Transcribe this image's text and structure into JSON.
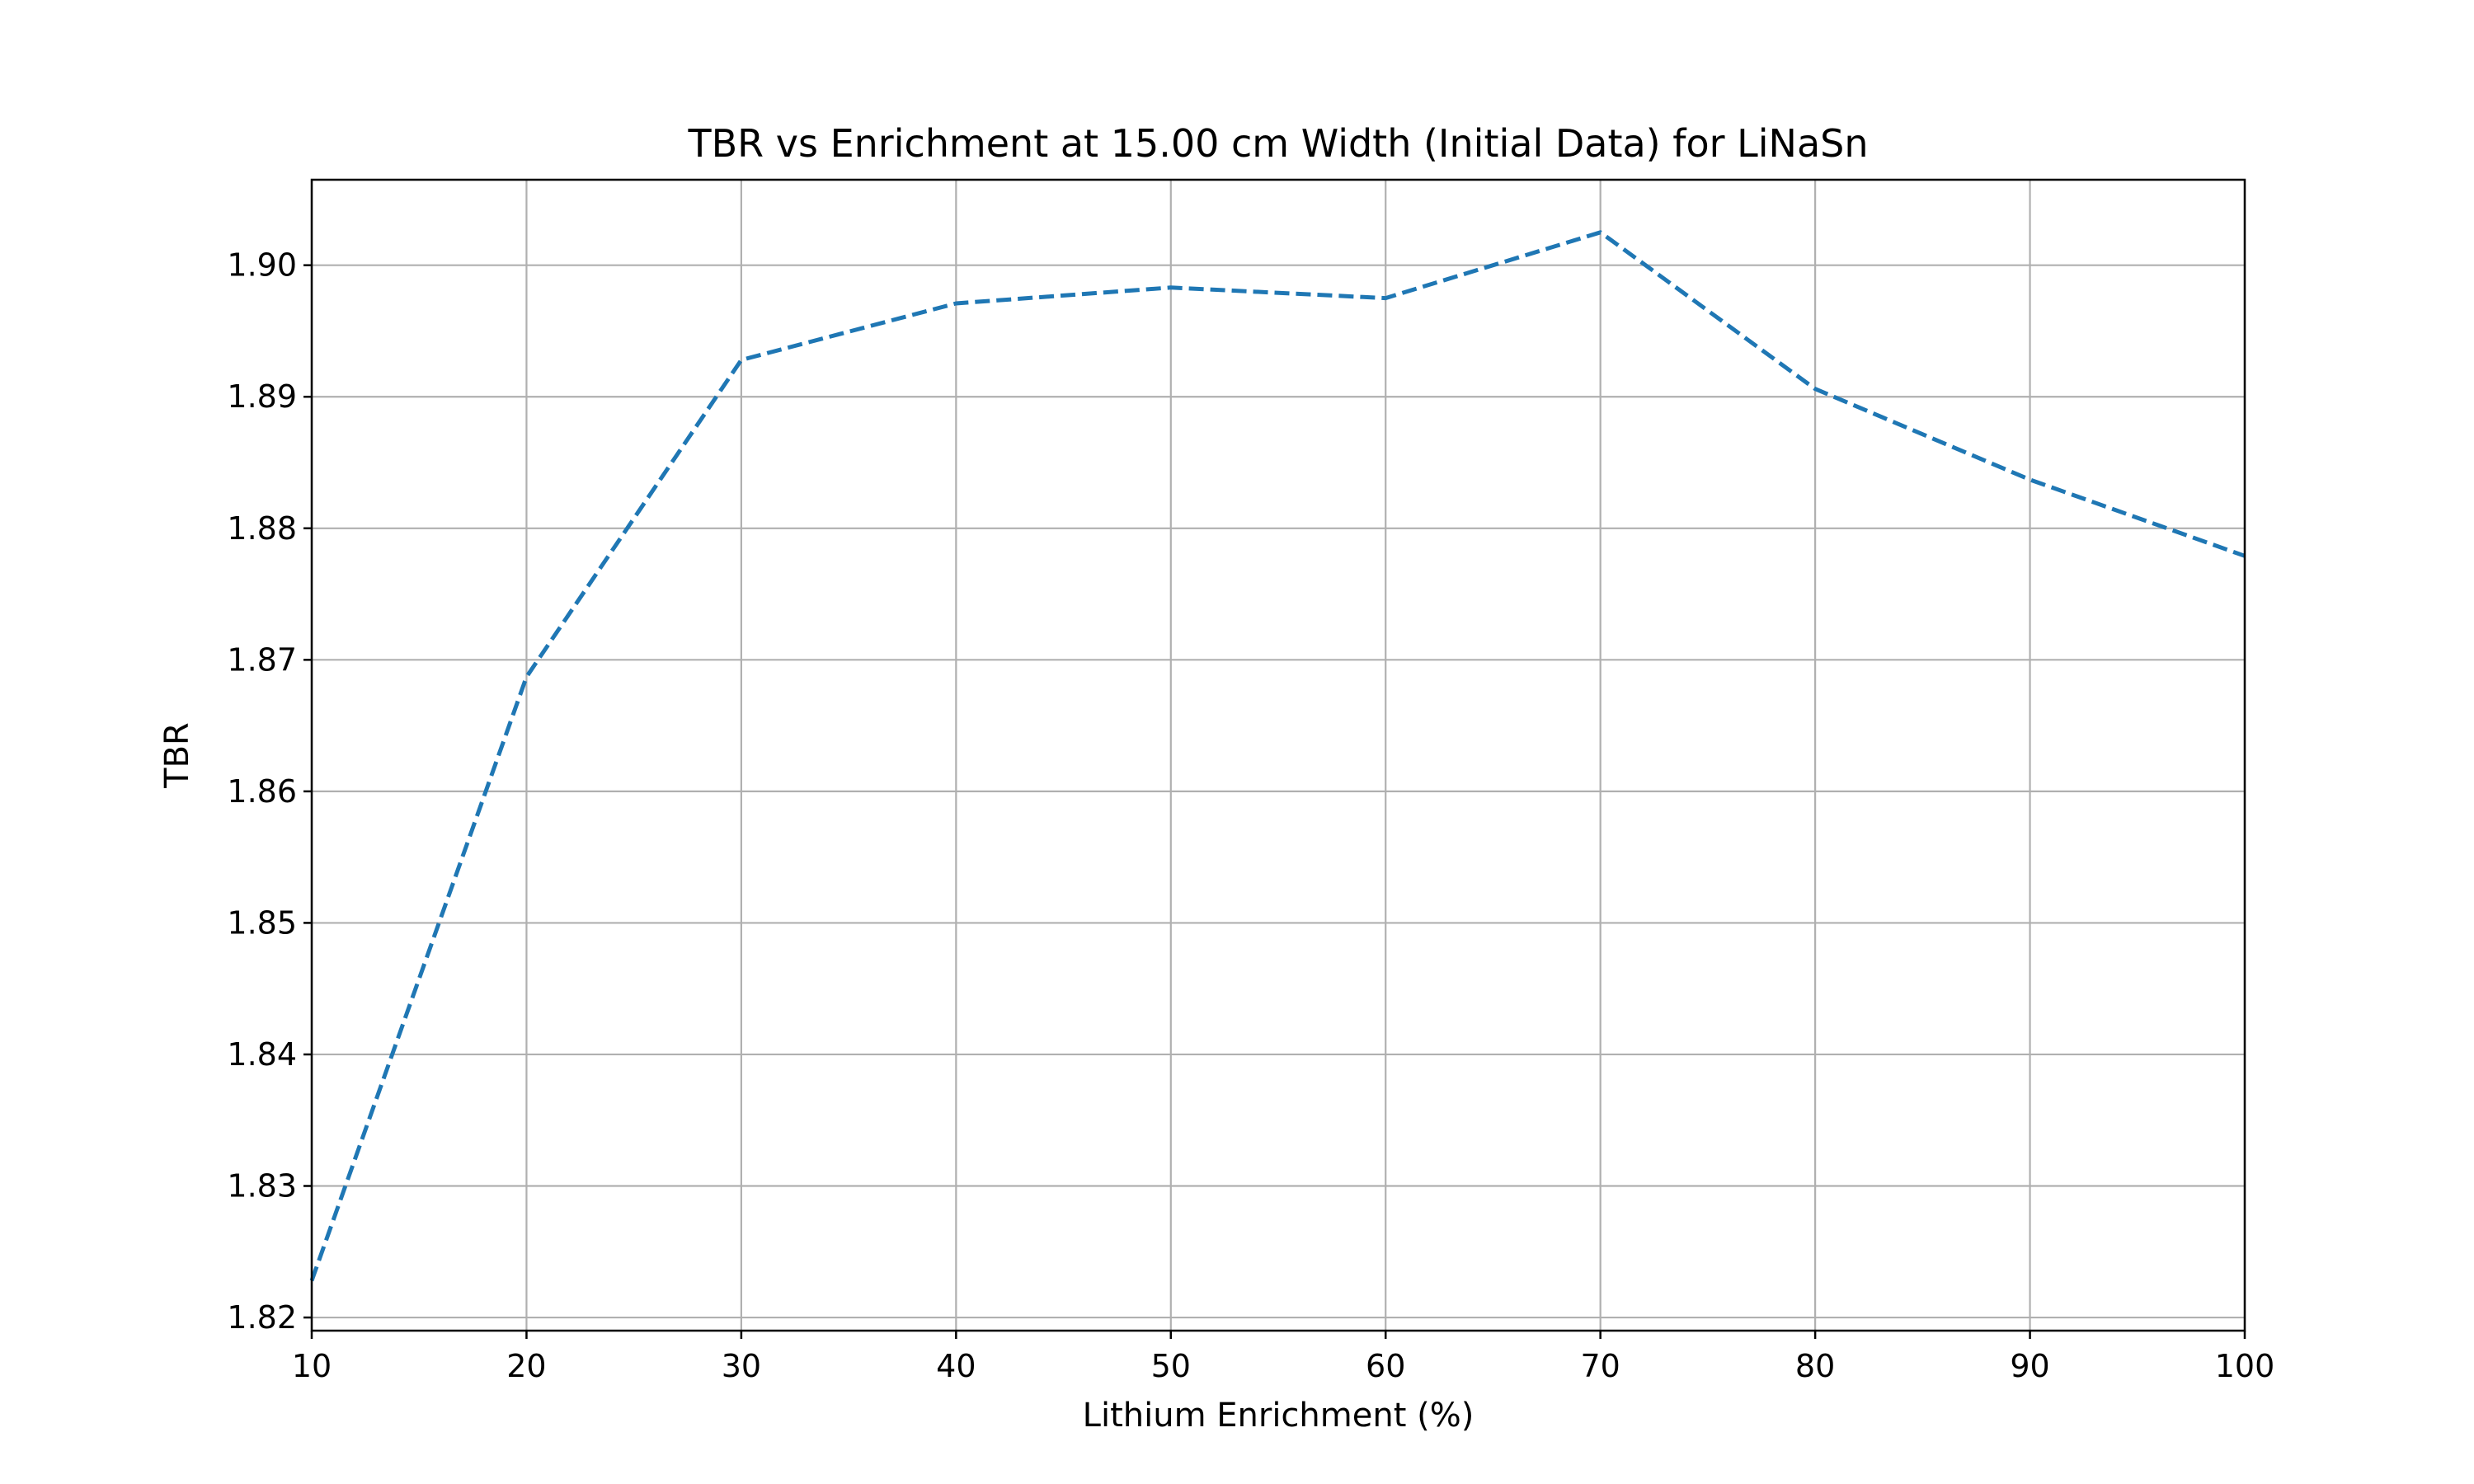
{
  "chart_data": {
    "type": "line",
    "title": "TBR vs Enrichment at 15.00 cm Width (Initial Data) for LiNaSn",
    "xlabel": "Lithium Enrichment (%)",
    "ylabel": "TBR",
    "xlim": [
      10,
      100
    ],
    "ylim": [
      1.819,
      1.9065
    ],
    "xticks": [
      "10",
      "20",
      "30",
      "40",
      "50",
      "60",
      "70",
      "80",
      "90",
      "100"
    ],
    "yticks": [
      "1.82",
      "1.83",
      "1.84",
      "1.85",
      "1.86",
      "1.87",
      "1.88",
      "1.89",
      "1.90"
    ],
    "grid": true,
    "series": [
      {
        "color": "#1f77b4",
        "linestyle": "dashed",
        "x": [
          10,
          20,
          30,
          40,
          50,
          60,
          70,
          80,
          90,
          100
        ],
        "y": [
          1.8228,
          1.8687,
          1.8928,
          1.8971,
          1.8983,
          1.8975,
          1.9025,
          1.8906,
          1.8837,
          1.8779
        ]
      }
    ]
  }
}
